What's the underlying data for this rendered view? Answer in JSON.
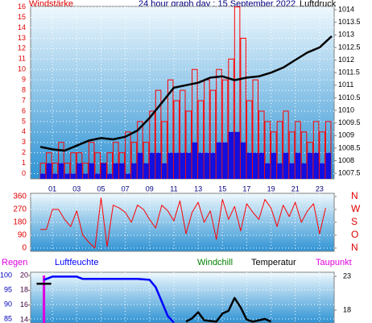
{
  "chart_data": [
    {
      "type": "combo",
      "title": "24 hour graph day : 15 September 2022",
      "ylabel": "Windstärke",
      "y2label": "Luftdruck",
      "xlim": [
        -0.8,
        24.2
      ],
      "xticks": [
        {
          "value": 1,
          "label": "01"
        },
        {
          "value": 3,
          "label": "03"
        },
        {
          "value": 5,
          "label": "05"
        },
        {
          "value": 7,
          "label": "07"
        },
        {
          "value": 9,
          "label": "09"
        },
        11,
        13,
        15,
        17,
        19,
        21,
        23
      ],
      "ylim": [
        -0.5,
        16.05
      ],
      "yticks": [
        0,
        1,
        2,
        3,
        4,
        5,
        6,
        7,
        8,
        9,
        10,
        11,
        12,
        13,
        14,
        15,
        16
      ],
      "y2lim": [
        1007.28,
        1014.13
      ],
      "y2ticks": [
        1007.5,
        1008,
        1008.5,
        1009,
        1009.5,
        1010,
        1010.5,
        1011,
        1011.5,
        1012,
        1012.5,
        1013,
        1013.5,
        1014
      ],
      "grid": true,
      "series": [
        {
          "style": "bar",
          "color": "#ff0000",
          "x": [
            0,
            0.5,
            1,
            1.5,
            2,
            2.5,
            3,
            3.5,
            4,
            4.5,
            5,
            5.5,
            6,
            6.5,
            7,
            7.5,
            8,
            8.5,
            9,
            9.5,
            10,
            10.5,
            11,
            11.5,
            12,
            12.5,
            13,
            13.5,
            14,
            14.5,
            15,
            15.5,
            16,
            16.5,
            17,
            17.5,
            18,
            18.5,
            19,
            19.5,
            20,
            20.5,
            21,
            21.5,
            22,
            22.5,
            23,
            23.5
          ],
          "values": [
            1,
            2,
            1,
            3,
            1,
            2,
            2,
            1,
            3,
            2,
            1,
            2,
            3,
            2,
            4,
            3,
            5,
            3,
            6,
            8,
            5,
            9,
            7,
            8,
            6,
            10,
            7,
            9,
            8,
            10,
            9,
            11,
            16,
            13,
            7,
            9,
            6,
            5,
            4,
            5,
            6,
            4,
            5,
            4,
            3,
            5,
            4,
            5
          ]
        },
        {
          "style": "bar",
          "color": "#1010e0",
          "x": [
            0,
            0.5,
            1,
            1.5,
            2,
            2.5,
            3,
            3.5,
            4,
            4.5,
            5,
            5.5,
            6,
            6.5,
            7,
            7.5,
            8,
            8.5,
            9,
            9.5,
            10,
            10.5,
            11,
            11.5,
            12,
            12.5,
            13,
            13.5,
            14,
            14.5,
            15,
            15.5,
            16,
            16.5,
            17,
            17.5,
            18,
            18.5,
            19,
            19.5,
            20,
            20.5,
            21,
            21.5,
            22,
            22.5,
            23,
            23.5
          ],
          "values": [
            0,
            1,
            0,
            1,
            0,
            0,
            1,
            0,
            1,
            0,
            1,
            0,
            1,
            1,
            0,
            1,
            2,
            1,
            2,
            2,
            1,
            2,
            2,
            2,
            2,
            3,
            2,
            2,
            2,
            3,
            3,
            4,
            4,
            3,
            2,
            2,
            2,
            1,
            2,
            1,
            2,
            1,
            2,
            1,
            2,
            2,
            1,
            2
          ]
        },
        {
          "style": "line",
          "axis": "y2",
          "color": "#000000",
          "x": [
            0,
            1,
            2,
            3,
            4,
            5,
            6,
            7,
            8,
            9,
            10,
            11,
            12,
            13,
            14,
            15,
            16,
            17,
            18,
            19,
            20,
            21,
            22,
            23,
            24
          ],
          "values": [
            1008.55,
            1008.45,
            1008.4,
            1008.6,
            1008.8,
            1008.9,
            1008.85,
            1008.95,
            1009.2,
            1009.7,
            1010.3,
            1010.9,
            1011.0,
            1011.1,
            1011.3,
            1011.35,
            1011.2,
            1011.3,
            1011.35,
            1011.5,
            1011.7,
            1012.0,
            1012.3,
            1012.5,
            1012.95
          ]
        }
      ]
    },
    {
      "type": "line",
      "xlim": [
        -0.8,
        24.2
      ],
      "ylim": [
        -22.5,
        382.5
      ],
      "yticks": [
        0,
        90,
        180,
        270,
        360
      ],
      "y2lim": [
        -22.5,
        382.5
      ],
      "y2ticks": [
        {
          "value": 360,
          "label": "N"
        },
        {
          "value": 270,
          "label": "W"
        },
        {
          "value": 180,
          "label": "S"
        },
        {
          "value": 90,
          "label": "O"
        },
        {
          "value": 0,
          "label": "N"
        }
      ],
      "grid": true,
      "series": [
        {
          "color": "#ff0000",
          "x": [
            0,
            0.5,
            1,
            1.5,
            2,
            2.5,
            3,
            3.5,
            4,
            4.5,
            5,
            5.5,
            6,
            6.5,
            7,
            7.5,
            8,
            8.5,
            9,
            9.5,
            10,
            10.5,
            11,
            11.5,
            12,
            12.5,
            13,
            13.5,
            14,
            14.5,
            15,
            15.5,
            16,
            16.5,
            17,
            17.5,
            18,
            18.5,
            19,
            19.5,
            20,
            20.5,
            21,
            21.5,
            22,
            22.5,
            23,
            23.5
          ],
          "values": [
            130,
            130,
            270,
            270,
            200,
            150,
            260,
            90,
            40,
            0,
            350,
            10,
            300,
            280,
            250,
            180,
            300,
            270,
            200,
            140,
            300,
            260,
            190,
            330,
            100,
            250,
            320,
            180,
            260,
            60,
            340,
            200,
            290,
            120,
            310,
            250,
            200,
            340,
            280,
            150,
            300,
            220,
            320,
            180,
            260,
            310,
            100,
            280
          ]
        }
      ]
    },
    {
      "type": "line",
      "xlim": [
        -0.8,
        24.2
      ],
      "ylim": [
        83.6,
        101.1
      ],
      "yticks": [
        85,
        90,
        95,
        100
      ],
      "y3lim": [
        13.56,
        20.44
      ],
      "y3ticks": [
        14,
        16,
        18,
        20
      ],
      "y2lim": [
        16.1,
        23.6
      ],
      "y2ticks": [
        18,
        23
      ],
      "grid": true,
      "series": [
        {
          "name": "Regen",
          "style": "bar",
          "axis": "y3",
          "color": "#e000e0",
          "x": [
            0.3
          ],
          "values": [
            20
          ]
        },
        {
          "name": "Luftfeuchte",
          "color": "#0000ff",
          "x": [
            0.3,
            1,
            2,
            3,
            3.5,
            5,
            6,
            7,
            8,
            9,
            9.5,
            10,
            10.5,
            11
          ],
          "values": [
            98.5,
            99.6,
            99.6,
            99.6,
            98.8,
            98.8,
            98.8,
            98.8,
            98.8,
            98.5,
            96,
            91,
            86,
            83.8
          ]
        },
        {
          "name": "Temperatur",
          "axis": "y2",
          "color": "#000000",
          "x": [
            -0.3,
            0.3,
            0.9,
            11.5,
            12,
            12.5,
            13,
            13.5,
            14,
            14.5,
            15,
            15.5,
            16,
            16.5,
            17,
            17.5,
            18,
            18.5,
            19
          ],
          "values": [
            21.9,
            21.9,
            21.9,
            null,
            16.3,
            16.8,
            17.7,
            16.5,
            16.4,
            16.3,
            17.5,
            17.9,
            19.8,
            18.4,
            16.6,
            16.3,
            16.5,
            16.7,
            16.3
          ]
        }
      ],
      "annotations": [
        {
          "text": "Windchill",
          "color": "#008000"
        },
        {
          "text": "Taupunkt",
          "color": "#e000e0"
        }
      ]
    }
  ]
}
